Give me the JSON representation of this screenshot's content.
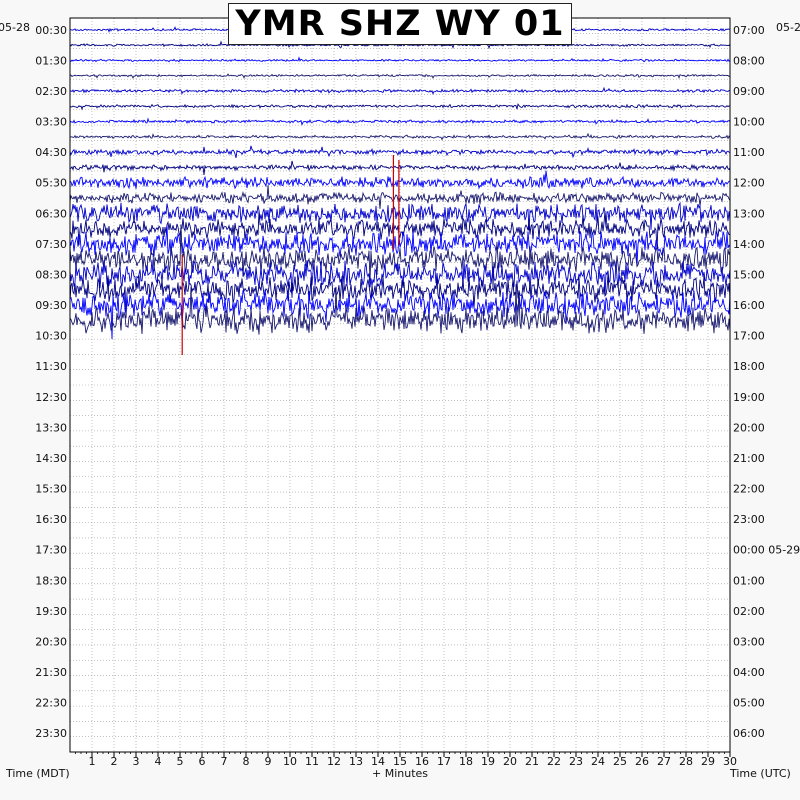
{
  "title": "YMR SHZ WY 01",
  "left_date": "05-28",
  "right_date": "05-2",
  "right_date_2": "05-29",
  "left_axis_label": "Time (MDT)",
  "right_axis_label": "Time (UTC)",
  "x_axis_label": "+ Minutes",
  "chart_data": {
    "type": "line",
    "title": "YMR SHZ WY 01",
    "xlabel": "+ Minutes",
    "ylabel_left": "Time (MDT)",
    "ylabel_right": "Time (UTC)",
    "xlim": [
      0,
      30
    ],
    "x_ticks": [
      1,
      2,
      3,
      4,
      5,
      6,
      7,
      8,
      9,
      10,
      11,
      12,
      13,
      14,
      15,
      16,
      17,
      18,
      19,
      20,
      21,
      22,
      23,
      24,
      25,
      26,
      27,
      28,
      29,
      30
    ],
    "left_ticks": [
      "00:30",
      "01:30",
      "02:30",
      "03:30",
      "04:30",
      "05:30",
      "06:30",
      "07:30",
      "08:30",
      "09:30",
      "10:30",
      "11:30",
      "12:30",
      "13:30",
      "14:30",
      "15:30",
      "16:30",
      "17:30",
      "18:30",
      "19:30",
      "20:30",
      "21:30",
      "22:30",
      "23:30"
    ],
    "right_ticks": [
      "07:00",
      "08:00",
      "09:00",
      "10:00",
      "11:00",
      "12:00",
      "13:00",
      "14:00",
      "15:00",
      "16:00",
      "17:00",
      "18:00",
      "19:00",
      "20:00",
      "21:00",
      "22:00",
      "23:00",
      "00:00 05-29",
      "01:00",
      "02:00",
      "03:00",
      "04:00",
      "05:00",
      "06:00"
    ],
    "trace_count": 20,
    "trace_colors": [
      "#0000cc",
      "#000080",
      "#0000ff",
      "#1a1a70"
    ],
    "event_color": "#cc0000",
    "grid": true,
    "legend": "none"
  }
}
